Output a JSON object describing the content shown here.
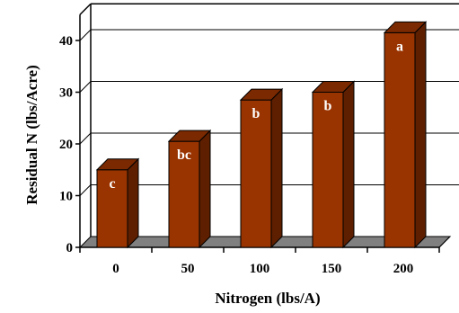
{
  "chart_data": {
    "type": "bar",
    "categories": [
      "0",
      "50",
      "100",
      "150",
      "200"
    ],
    "values": [
      15,
      20.5,
      28.5,
      30,
      41.5
    ],
    "labels": [
      "c",
      "bc",
      "b",
      "b",
      "a"
    ],
    "xlabel": "Nitrogen (lbs/A)",
    "ylabel": "Residual  N (lbs/Acre)",
    "yticks": [
      "0",
      "10",
      "20",
      "30",
      "40"
    ],
    "ylim": [
      0,
      45
    ],
    "grid": true,
    "legend": "none",
    "colors": {
      "bar_front": "#993300",
      "bar_side": "#5e1f00",
      "bar_top": "#7a2900",
      "floor": "#808080",
      "grid": "#000000"
    }
  }
}
